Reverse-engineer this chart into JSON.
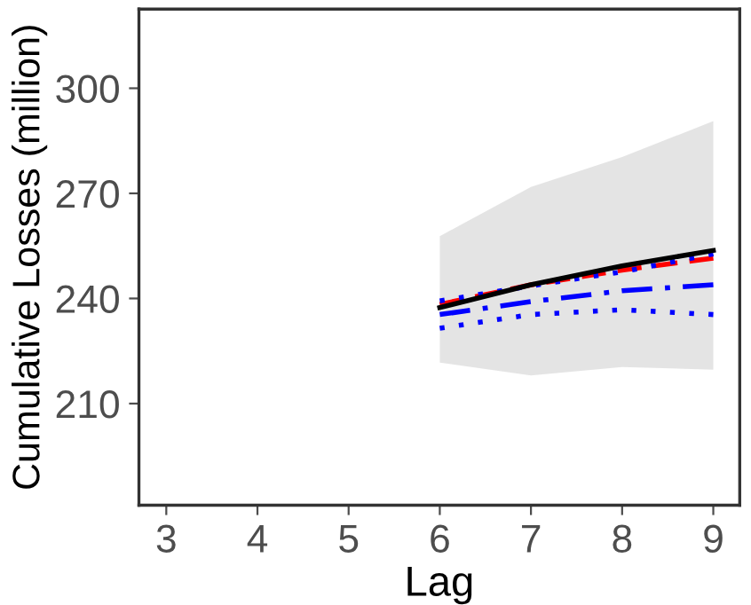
{
  "chart_data": {
    "type": "line",
    "xlabel": "Lag",
    "ylabel": "Cumulative Losses (million)",
    "xlim": [
      2.7,
      9.29
    ],
    "xticks": [
      3,
      4,
      5,
      6,
      7,
      8,
      9
    ],
    "ylim": [
      181,
      322.6
    ],
    "yticks": [
      210,
      240,
      270,
      300
    ],
    "grid": false,
    "legend": false,
    "marker": "none",
    "series": [
      {
        "color": "#000000",
        "x": [
          6,
          7,
          8,
          9
        ],
        "values": [
          237.4,
          243.9,
          249.3,
          253.7
        ],
        "lower": [
          221.7,
          218,
          220.4,
          219.7
        ],
        "upper": [
          257.8,
          271.8,
          280.4,
          290.6
        ],
        "line_style": "solid"
      },
      {
        "color": "#ff0000",
        "x": [
          6,
          7,
          8,
          9
        ],
        "values": [
          238.3,
          243.9,
          248.1,
          251.5
        ],
        "line_style": "dashed"
      },
      {
        "color": "#0000ff",
        "x": [
          6,
          7,
          8,
          9
        ],
        "values": [
          239.3,
          243.6,
          247.6,
          252.7
        ],
        "line_style": "dotted"
      },
      {
        "color": "#0000ff",
        "x": [
          6,
          7,
          8,
          9
        ],
        "values": [
          235.4,
          239.1,
          242.2,
          243.9
        ],
        "line_style": "dashdot"
      },
      {
        "color": "#0000ff",
        "x": [
          6,
          7,
          8,
          9
        ],
        "values": [
          231.5,
          235.4,
          236.8,
          235.4
        ],
        "line_style": "dotted"
      }
    ]
  }
}
